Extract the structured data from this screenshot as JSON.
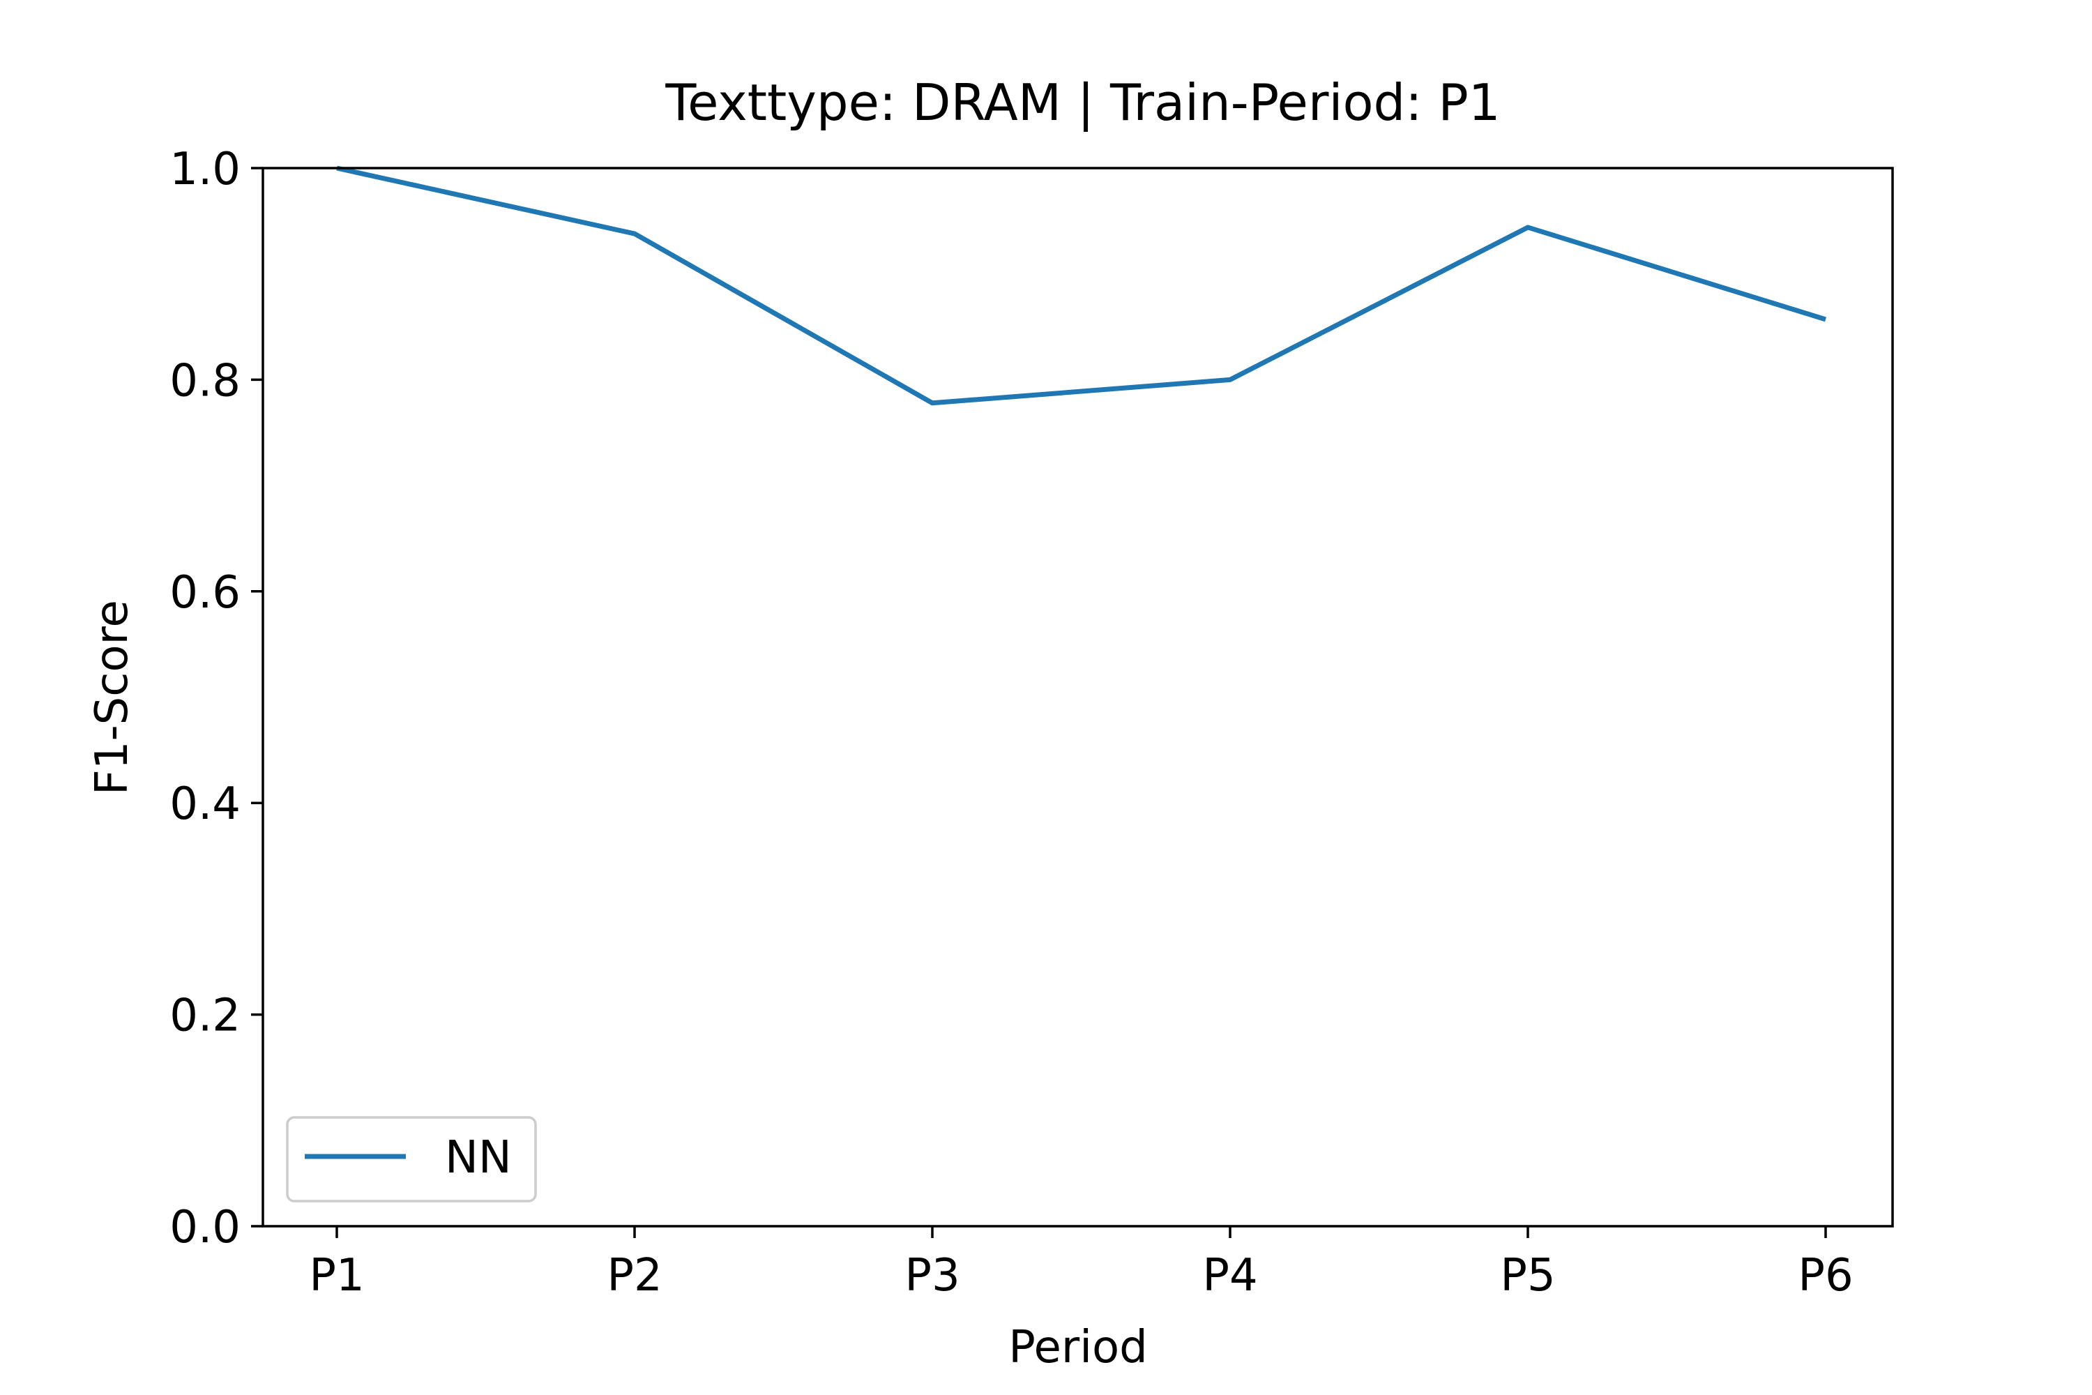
{
  "chart_data": {
    "type": "line",
    "title": "Texttype: DRAM | Train-Period: P1",
    "xlabel": "Period",
    "ylabel": "F1-Score",
    "categories": [
      "P1",
      "P2",
      "P3",
      "P4",
      "P5",
      "P6"
    ],
    "ylim": [
      0,
      1
    ],
    "yticks": [
      "0.0",
      "0.2",
      "0.4",
      "0.6",
      "0.8",
      "1.0"
    ],
    "series": [
      {
        "name": "NN",
        "values": [
          1.0,
          0.938,
          0.778,
          0.8,
          0.944,
          0.857
        ]
      }
    ],
    "legend": "lower-left",
    "grid": false,
    "colors": {
      "NN": "#1f77b4"
    }
  }
}
